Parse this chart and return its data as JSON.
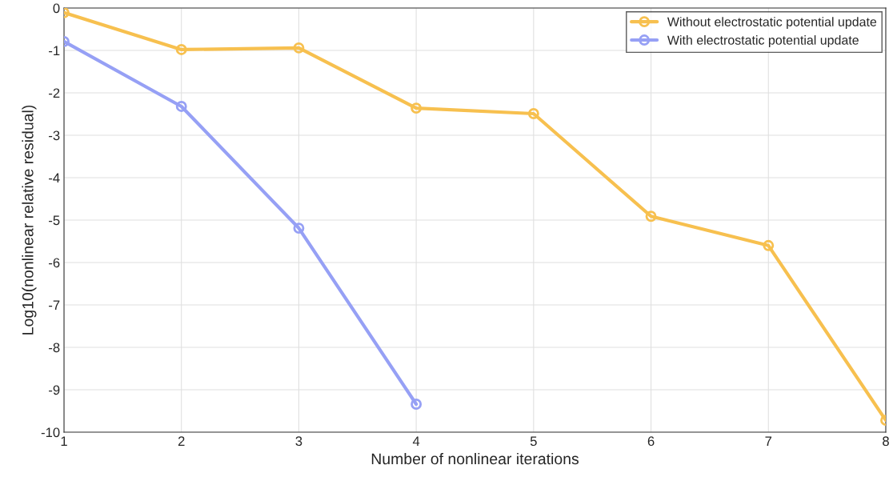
{
  "chart_data": {
    "type": "line",
    "xlabel": "Number of nonlinear iterations",
    "ylabel": "Log10(nonlinear relative residual)",
    "xlim": [
      1,
      8
    ],
    "xticks": [
      1,
      2,
      3,
      4,
      5,
      6,
      7,
      8
    ],
    "ylim": [
      -10,
      0
    ],
    "yticks": [
      -10,
      -9,
      -8,
      -7,
      -6,
      -5,
      -4,
      -3,
      -2,
      -1,
      0
    ],
    "grid": true,
    "legend": "top right",
    "marker": "circle",
    "line_style": "solid",
    "series": [
      {
        "name": "Without electrostatic potential update",
        "color": "#f7c04f",
        "x": [
          1,
          2,
          3,
          4,
          5,
          6,
          7,
          8
        ],
        "values": [
          -0.11,
          -0.98,
          -0.94,
          -2.36,
          -2.49,
          -4.91,
          -5.6,
          -9.72
        ]
      },
      {
        "name": "With electrostatic potential update",
        "color": "#96a0f5",
        "x": [
          1,
          2,
          3,
          4
        ],
        "values": [
          -0.79,
          -2.32,
          -5.19,
          -9.34
        ]
      }
    ]
  }
}
